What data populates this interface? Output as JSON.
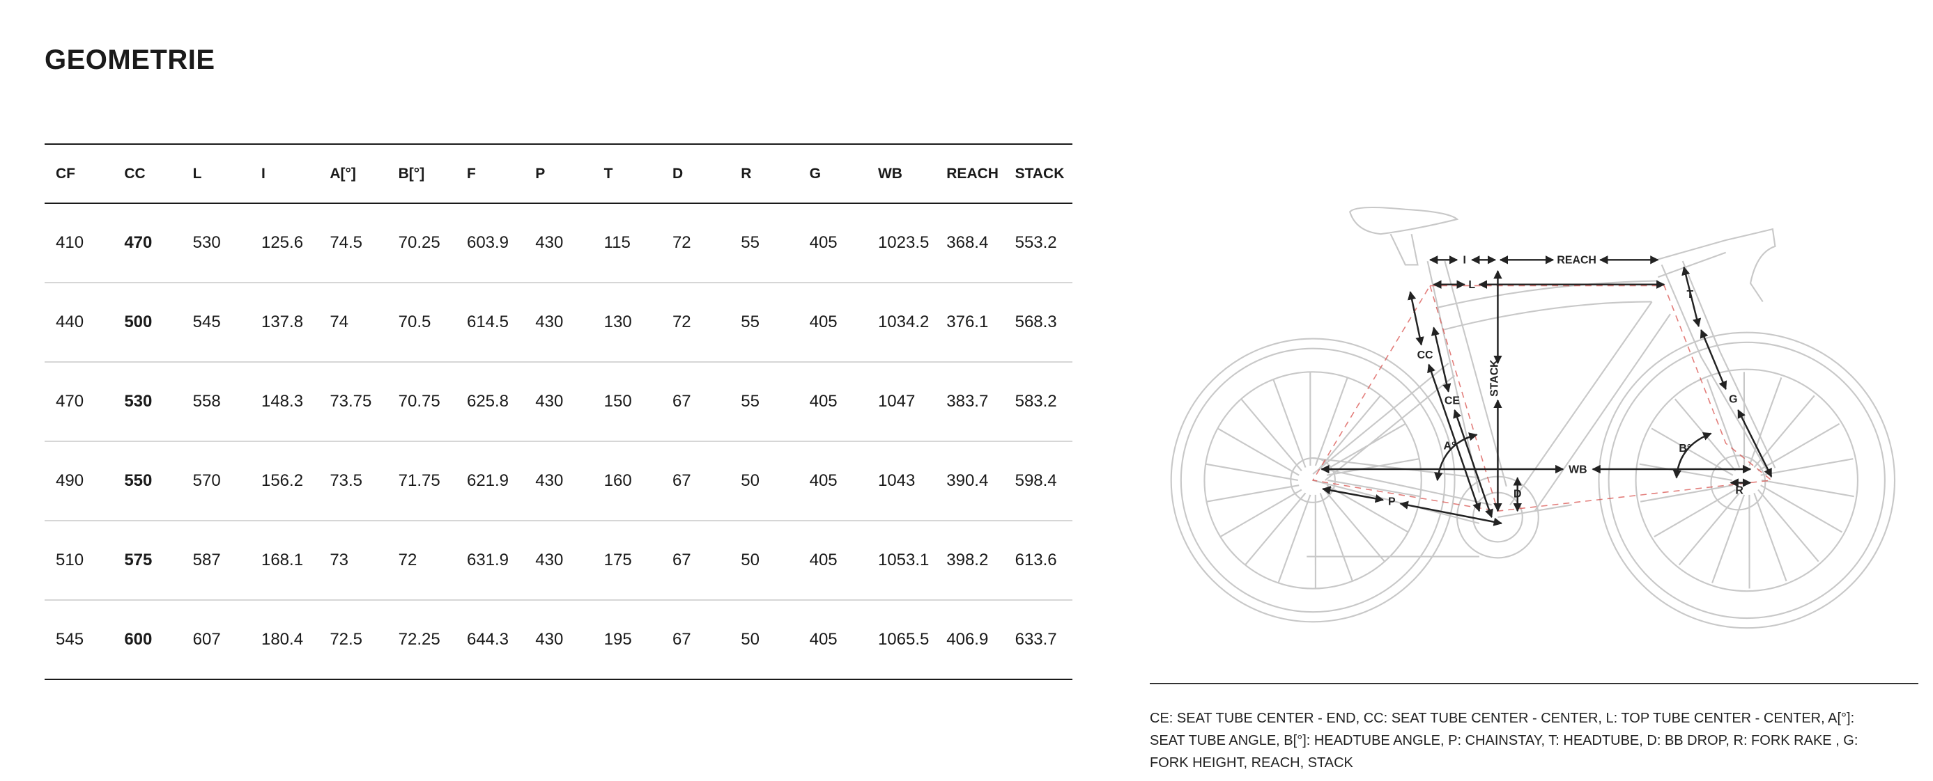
{
  "page": {
    "title": "GEOMETRIE"
  },
  "table": {
    "headers": [
      "CF",
      "CC",
      "L",
      "I",
      "A[°]",
      "B[°]",
      "F",
      "P",
      "T",
      "D",
      "R",
      "G",
      "WB",
      "REACH",
      "STACK"
    ],
    "bold_column": "CC",
    "rows": [
      [
        "410",
        "470",
        "530",
        "125.6",
        "74.5",
        "70.25",
        "603.9",
        "430",
        "115",
        "72",
        "55",
        "405",
        "1023.5",
        "368.4",
        "553.2"
      ],
      [
        "440",
        "500",
        "545",
        "137.8",
        "74",
        "70.5",
        "614.5",
        "430",
        "130",
        "72",
        "55",
        "405",
        "1034.2",
        "376.1",
        "568.3"
      ],
      [
        "470",
        "530",
        "558",
        "148.3",
        "73.75",
        "70.75",
        "625.8",
        "430",
        "150",
        "67",
        "55",
        "405",
        "1047",
        "383.7",
        "583.2"
      ],
      [
        "490",
        "550",
        "570",
        "156.2",
        "73.5",
        "71.75",
        "621.9",
        "430",
        "160",
        "67",
        "50",
        "405",
        "1043",
        "390.4",
        "598.4"
      ],
      [
        "510",
        "575",
        "587",
        "168.1",
        "73",
        "72",
        "631.9",
        "430",
        "175",
        "67",
        "50",
        "405",
        "1053.1",
        "398.2",
        "613.6"
      ],
      [
        "545",
        "600",
        "607",
        "180.4",
        "72.5",
        "72.25",
        "644.3",
        "430",
        "195",
        "67",
        "50",
        "405",
        "1065.5",
        "406.9",
        "633.7"
      ]
    ]
  },
  "diagram": {
    "labels": {
      "I": "I",
      "REACH": "REACH",
      "L": "L",
      "STACK": "STACK",
      "CC": "CC",
      "CE": "CE",
      "A": "A°",
      "B": "B°",
      "WB": "WB",
      "P": "P",
      "D": "D",
      "R": "R",
      "G": "G",
      "T": "T"
    },
    "colors": {
      "frame": "#c8c8c8",
      "dashed": "#d9534f",
      "arrow": "#222222"
    }
  },
  "legend": {
    "text": "CE: SEAT TUBE CENTER - END, CC: SEAT TUBE CENTER - CENTER, L: TOP TUBE CENTER - CENTER, A[°]: SEAT TUBE ANGLE, B[°]: HEADTUBE ANGLE, P: CHAINSTAY, T: HEADTUBE, D: BB DROP, R: FORK RAKE , G: FORK HEIGHT, REACH, STACK"
  }
}
